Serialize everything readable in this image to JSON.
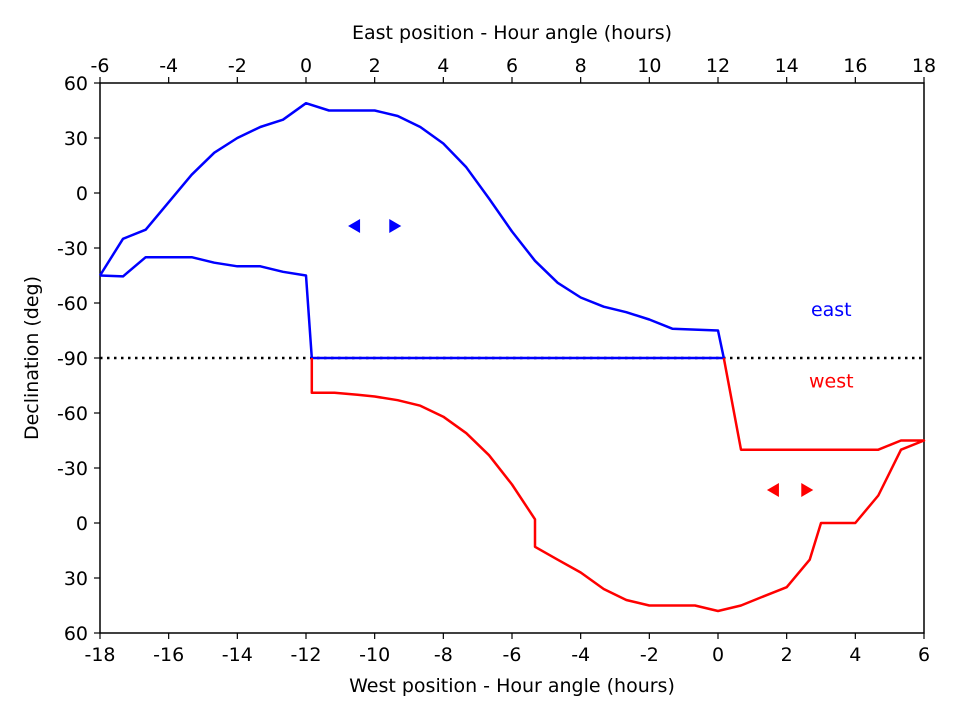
{
  "chart_data": {
    "type": "line",
    "title": "",
    "xlabel_bottom": "West position - Hour angle (hours)",
    "xlabel_top": "East position - Hour angle (hours)",
    "ylabel": "Declination (deg)",
    "x_bottom_ticks": [
      "-18",
      "-16",
      "-14",
      "-12",
      "-10",
      "-8",
      "-6",
      "-4",
      "-2",
      "0",
      "2",
      "4",
      "6"
    ],
    "x_top_ticks": [
      "-6",
      "-4",
      "-2",
      "0",
      "2",
      "4",
      "6",
      "8",
      "10",
      "12",
      "14",
      "16",
      "18"
    ],
    "y_ticks": [
      "60",
      "30",
      "0",
      "-30",
      "-60",
      "-90",
      "-60",
      "-30",
      "0",
      "30",
      "60"
    ],
    "xlim_bottom": [
      -18,
      6
    ],
    "xlim_top": [
      -6,
      18
    ],
    "ylim_panel": [
      0,
      10
    ],
    "pole_reference_line": {
      "value": -90,
      "style": "dotted",
      "color": "#000000"
    },
    "series": [
      {
        "name": "east",
        "color": "#0000ff",
        "axis": "top",
        "x": [
          -6.0,
          -5.33,
          -4.67,
          -4.0,
          -3.33,
          -2.67,
          -2.0,
          -1.33,
          -0.67,
          0.0,
          0.67,
          1.33,
          2.0,
          2.67,
          3.33,
          4.0,
          4.67,
          5.33,
          6.0,
          6.67,
          7.33,
          8.0,
          8.67,
          9.33,
          10.0,
          10.67,
          11.33,
          12.0,
          12.17,
          0.17,
          0.0,
          -0.67,
          -1.33,
          -2.0,
          -2.67,
          -3.33,
          -4.0,
          -4.67,
          -5.33,
          -6.0
        ],
        "y": [
          -45,
          -25,
          -20,
          -5,
          10,
          22,
          30,
          36,
          40,
          49,
          45,
          45,
          45,
          42,
          36,
          27,
          14,
          -3,
          -21,
          -37,
          -49,
          -57,
          -62,
          -65,
          -69,
          -74,
          -74.5,
          -75,
          -90,
          -90,
          -45,
          -43,
          -40,
          -40,
          -38,
          -35,
          -35,
          -35,
          -45.5,
          -45
        ]
      },
      {
        "name": "west",
        "color": "#ff0000",
        "axis": "bottom",
        "x": [
          -11.83,
          -11.83,
          -11.17,
          -10.5,
          -10.0,
          -9.33,
          -8.67,
          -8.0,
          -7.33,
          -6.67,
          -6.0,
          -5.33,
          -5.33,
          -4.67,
          -4.0,
          -3.33,
          -2.67,
          -2.0,
          -1.33,
          -0.67,
          0.0,
          0.67,
          1.33,
          2.0,
          2.67,
          3.0,
          4.0,
          4.67,
          5.33,
          6.0,
          5.33,
          4.67,
          4.0,
          3.33,
          2.67,
          2.0,
          1.33,
          0.67,
          0.17
        ],
        "y": [
          -90,
          -71,
          -71,
          -70,
          -69,
          -67,
          -64,
          -58,
          -49,
          -37,
          -21,
          -2,
          13,
          20,
          27,
          36,
          42,
          45,
          45,
          45,
          48,
          45,
          40,
          35,
          20,
          0,
          0,
          -15,
          -40,
          -45,
          -45,
          -40,
          -40,
          -40,
          -40,
          -40,
          -40,
          -40,
          -90
        ]
      }
    ],
    "annotations": [
      {
        "text": "east",
        "color": "#0000ff",
        "x_top": 15.3,
        "dec_east": -67
      },
      {
        "text": "west",
        "color": "#ff0000",
        "x_bottom": 3.3,
        "dec_west": -74
      }
    ],
    "arrow_markers": [
      {
        "color": "#0000ff",
        "axis": "top",
        "x": [
          1.4,
          2.6
        ],
        "dec_east": -18
      },
      {
        "color": "#ff0000",
        "axis": "bottom",
        "x": [
          1.6,
          2.6
        ],
        "dec_west": -18
      }
    ],
    "grid": false,
    "legend": "none"
  }
}
